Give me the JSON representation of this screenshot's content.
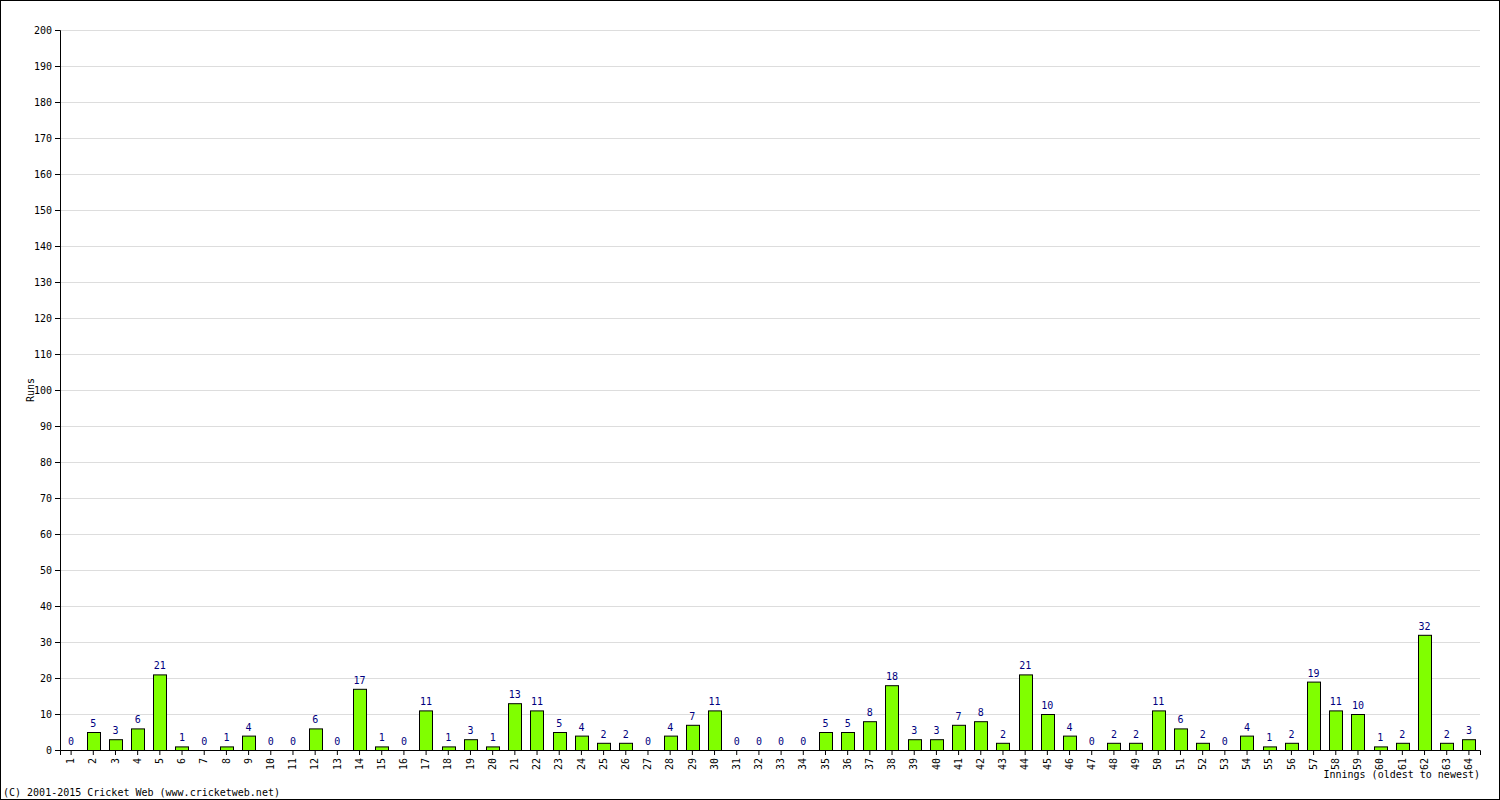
{
  "chart_data": {
    "type": "bar",
    "x_label": "Innings (oldest to newest)",
    "y_label": "Runs",
    "annotations": [
      "(C) 2001-2015 Cricket Web (www.cricketweb.net)"
    ],
    "categories": [
      "1",
      "2",
      "3",
      "4",
      "5",
      "6",
      "7",
      "8",
      "9",
      "10",
      "11",
      "12",
      "13",
      "14",
      "15",
      "16",
      "17",
      "18",
      "19",
      "20",
      "21",
      "22",
      "23",
      "24",
      "25",
      "26",
      "27",
      "28",
      "29",
      "30",
      "31",
      "32",
      "33",
      "34",
      "35",
      "36",
      "37",
      "38",
      "39",
      "40",
      "41",
      "42",
      "43",
      "44",
      "45",
      "46",
      "47",
      "48",
      "49",
      "50",
      "51",
      "52",
      "53",
      "54",
      "55",
      "56",
      "57",
      "58",
      "59",
      "60",
      "61",
      "62",
      "63",
      "64"
    ],
    "values": [
      0,
      5,
      3,
      6,
      21,
      1,
      0,
      1,
      4,
      0,
      0,
      6,
      0,
      17,
      1,
      0,
      11,
      1,
      3,
      1,
      13,
      11,
      5,
      4,
      2,
      2,
      0,
      4,
      7,
      11,
      0,
      0,
      0,
      0,
      5,
      5,
      8,
      18,
      3,
      3,
      7,
      8,
      2,
      21,
      10,
      4,
      0,
      2,
      2,
      11,
      6,
      2,
      0,
      4,
      1,
      2,
      19,
      11,
      10,
      1,
      2,
      32,
      2,
      3
    ],
    "color": "#80ff00",
    "ylim": [
      0,
      200
    ],
    "yticks": [
      0,
      10,
      20,
      30,
      40,
      50,
      60,
      70,
      80,
      90,
      100,
      110,
      120,
      130,
      140,
      150,
      160,
      170,
      180,
      190,
      200
    ],
    "grid": true,
    "data_labels": true
  }
}
